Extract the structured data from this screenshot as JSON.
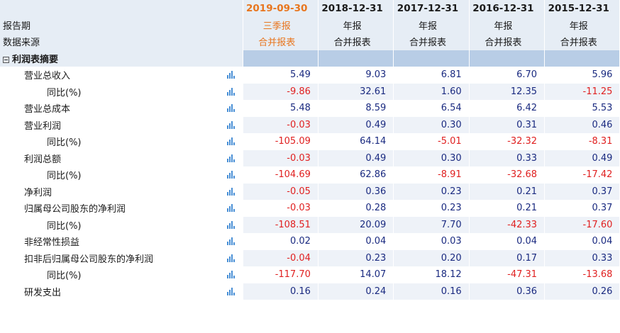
{
  "columns": [
    {
      "date": "2019-09-30",
      "period": "三季报",
      "source": "合并报表"
    },
    {
      "date": "2018-12-31",
      "period": "年报",
      "source": "合并报表"
    },
    {
      "date": "2017-12-31",
      "period": "年报",
      "source": "合并报表"
    },
    {
      "date": "2016-12-31",
      "period": "年报",
      "source": "合并报表"
    },
    {
      "date": "2015-12-31",
      "period": "年报",
      "source": "合并报表"
    }
  ],
  "labels": {
    "report_period": "报告期",
    "data_source": "数据来源",
    "section_title": "利润表摘要"
  },
  "icons": {
    "chart": "bar-chart-icon",
    "collapse": "collapse-minus-icon"
  },
  "colors": {
    "current_period": "#e8761f",
    "negative": "#e02020",
    "positive": "#1a2a80",
    "section_bg": "#b8cde6"
  },
  "rows": [
    {
      "label": "营业总收入",
      "indent": 1,
      "values": [
        "5.49",
        "9.03",
        "6.81",
        "6.70",
        "5.96"
      ]
    },
    {
      "label": "同比(%)",
      "indent": 2,
      "values": [
        "-9.86",
        "32.61",
        "1.60",
        "12.35",
        "-11.25"
      ]
    },
    {
      "label": "营业总成本",
      "indent": 1,
      "values": [
        "5.48",
        "8.59",
        "6.54",
        "6.42",
        "5.53"
      ]
    },
    {
      "label": "营业利润",
      "indent": 1,
      "values": [
        "-0.03",
        "0.49",
        "0.30",
        "0.31",
        "0.46"
      ]
    },
    {
      "label": "同比(%)",
      "indent": 2,
      "values": [
        "-105.09",
        "64.14",
        "-5.01",
        "-32.32",
        "-8.31"
      ]
    },
    {
      "label": "利润总额",
      "indent": 1,
      "values": [
        "-0.03",
        "0.49",
        "0.30",
        "0.33",
        "0.49"
      ]
    },
    {
      "label": "同比(%)",
      "indent": 2,
      "values": [
        "-104.69",
        "62.86",
        "-8.91",
        "-32.68",
        "-17.42"
      ]
    },
    {
      "label": "净利润",
      "indent": 1,
      "values": [
        "-0.05",
        "0.36",
        "0.23",
        "0.21",
        "0.37"
      ]
    },
    {
      "label": "归属母公司股东的净利润",
      "indent": 1,
      "values": [
        "-0.03",
        "0.28",
        "0.23",
        "0.21",
        "0.37"
      ]
    },
    {
      "label": "同比(%)",
      "indent": 2,
      "values": [
        "-108.51",
        "20.09",
        "7.70",
        "-42.33",
        "-17.60"
      ]
    },
    {
      "label": "非经常性损益",
      "indent": 1,
      "values": [
        "0.02",
        "0.04",
        "0.03",
        "0.04",
        "0.04"
      ]
    },
    {
      "label": "扣非后归属母公司股东的净利润",
      "indent": 1,
      "values": [
        "-0.04",
        "0.23",
        "0.20",
        "0.17",
        "0.33"
      ]
    },
    {
      "label": "同比(%)",
      "indent": 2,
      "values": [
        "-117.70",
        "14.07",
        "18.12",
        "-47.31",
        "-13.68"
      ]
    },
    {
      "label": "研发支出",
      "indent": 1,
      "values": [
        "0.16",
        "0.24",
        "0.16",
        "0.36",
        "0.26"
      ]
    }
  ]
}
